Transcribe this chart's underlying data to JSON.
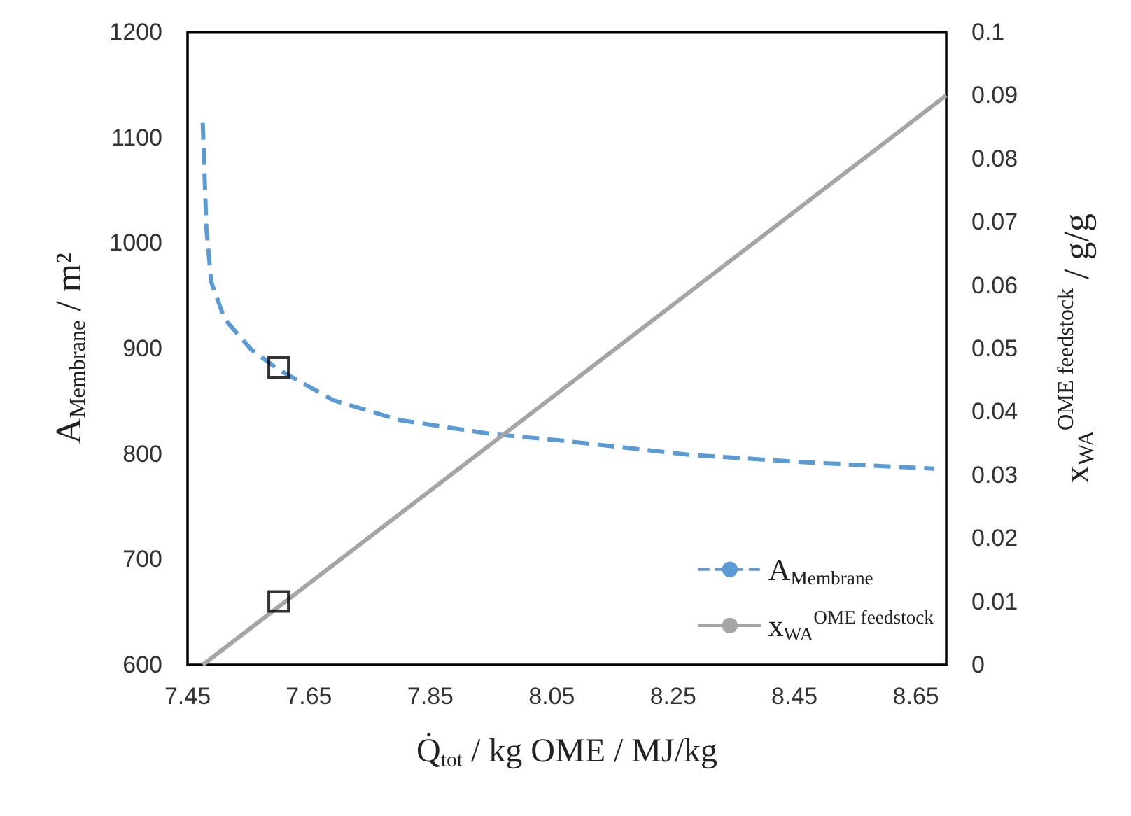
{
  "chart_data": {
    "type": "line",
    "xlabel": "Q̇$_{tot}$ / kg OME / MJ/kg",
    "ylabel": "A$_{Membrane}$ / m²",
    "y2label": "x$_{WA}$$^{OME feedstock}$ / g/g",
    "xlim": [
      7.45,
      8.7
    ],
    "xticks": [
      7.45,
      7.65,
      7.85,
      8.05,
      8.25,
      8.45,
      8.65
    ],
    "ylim": [
      600,
      1200
    ],
    "yticks": [
      600,
      700,
      800,
      900,
      1000,
      1100,
      1200
    ],
    "y2lim": [
      0,
      0.1
    ],
    "y2ticks": [
      0,
      0.01,
      0.02,
      0.03,
      0.04,
      0.05,
      0.06,
      0.07,
      0.08,
      0.09,
      0.1
    ],
    "grid": false,
    "legend": "bottom right",
    "series": [
      {
        "name": "A$_{Membrane}$",
        "color": "#5b9bd5",
        "line_style": "dashed",
        "marker": "none",
        "x": [
          7.475,
          7.481,
          7.489,
          7.511,
          7.555,
          7.6,
          7.69,
          7.8,
          7.95,
          8.06,
          8.28,
          8.47,
          8.68
        ],
        "values": [
          1114,
          1014,
          963,
          928,
          899,
          880,
          851,
          832,
          819,
          813,
          799,
          792,
          786
        ]
      },
      {
        "name": "x$_{WA}$$^{OME feedstock}$",
        "color": "#a5a5a5",
        "line_style": "solid",
        "marker": "none",
        "axis": "y2",
        "x": [
          7.475,
          8.7
        ],
        "values": [
          0,
          0.09
        ]
      },
      {
        "type": "scatter",
        "color": "#000000",
        "marker": "square",
        "x": [
          7.6
        ],
        "values": [
          882
        ]
      },
      {
        "type": "scatter",
        "color": "#000000",
        "marker": "square",
        "axis": "y2",
        "x": [
          7.6
        ],
        "values": [
          0.01
        ]
      }
    ]
  }
}
